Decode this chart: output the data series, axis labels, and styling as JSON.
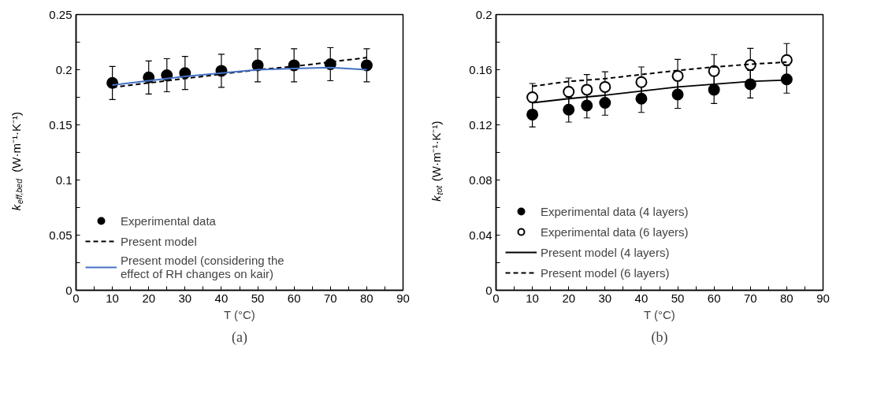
{
  "chart_data": [
    {
      "type": "line",
      "xlabel": "T (°C)",
      "ylabel": "k$_{eff,bed}$ (W·m⁻¹·K⁻¹)",
      "annotations": [
        "(a)"
      ],
      "xlim": [
        0,
        90
      ],
      "ylim": [
        0,
        0.25
      ],
      "xticks": [
        0,
        {
          "value": 5,
          "label": null
        },
        10,
        {
          "value": 15,
          "label": null
        },
        20,
        {
          "value": 25,
          "label": null
        },
        30,
        {
          "value": 35,
          "label": null
        },
        40,
        {
          "value": 45,
          "label": null
        },
        50,
        {
          "value": 55,
          "label": null
        },
        60,
        {
          "value": 65,
          "label": null
        },
        70,
        {
          "value": 75,
          "label": null
        },
        80,
        {
          "value": 85,
          "label": null
        },
        90
      ],
      "yticks": [
        0,
        {
          "value": 0.025,
          "label": null
        },
        0.05,
        {
          "value": 0.075,
          "label": null
        },
        0.1,
        {
          "value": 0.125,
          "label": null
        },
        0.15,
        {
          "value": 0.175,
          "label": null
        },
        0.2,
        {
          "value": 0.225,
          "label": null
        },
        0.25
      ],
      "legend": "bottom left",
      "series": [
        {
          "name": "Experimental data",
          "type": "scatter",
          "marker": "circle",
          "color": "#000000",
          "x": [
            10,
            20,
            25,
            30,
            40,
            50,
            60,
            70,
            80
          ],
          "values": [
            0.188,
            0.193,
            0.195,
            0.197,
            0.199,
            0.204,
            0.204,
            0.205,
            0.204
          ],
          "errors": [
            0.015,
            0.015,
            0.015,
            0.015,
            0.015,
            0.015,
            0.015,
            0.015,
            0.015
          ]
        },
        {
          "name": "Present model",
          "marker": "none",
          "line_style": "dashed",
          "color": "#000000",
          "x": [
            10,
            20,
            30,
            40,
            50,
            60,
            70,
            80
          ],
          "values": [
            0.184,
            0.188,
            0.192,
            0.196,
            0.2,
            0.203,
            0.207,
            0.211
          ]
        },
        {
          "name": "Present model (considering the effect of RH changes on kair)",
          "marker": "none",
          "line_style": "solid",
          "color": "#4472c4",
          "x": [
            10,
            20,
            30,
            40,
            50,
            60,
            70,
            80
          ],
          "values": [
            0.186,
            0.19,
            0.194,
            0.197,
            0.2,
            0.201,
            0.202,
            0.2
          ]
        }
      ]
    },
    {
      "type": "line",
      "xlabel": "T (°C)",
      "ylabel": "k$_{tot}$ (W·m⁻¹·K⁻¹)",
      "annotations": [
        "(b)"
      ],
      "xlim": [
        0,
        90
      ],
      "ylim": [
        0,
        0.2
      ],
      "xticks": [
        0,
        {
          "value": 5,
          "label": null
        },
        10,
        {
          "value": 15,
          "label": null
        },
        20,
        {
          "value": 25,
          "label": null
        },
        30,
        {
          "value": 35,
          "label": null
        },
        40,
        {
          "value": 45,
          "label": null
        },
        50,
        {
          "value": 55,
          "label": null
        },
        60,
        {
          "value": 65,
          "label": null
        },
        70,
        {
          "value": 75,
          "label": null
        },
        80,
        {
          "value": 85,
          "label": null
        },
        90
      ],
      "yticks": [
        0,
        {
          "value": 0.02,
          "label": null
        },
        0.04,
        {
          "value": 0.06,
          "label": null
        },
        0.08,
        {
          "value": 0.1,
          "label": null
        },
        0.12,
        {
          "value": 0.14,
          "label": null
        },
        0.16,
        {
          "value": 0.18,
          "label": null
        },
        0.2
      ],
      "legend": "bottom left",
      "series": [
        {
          "name": "Experimental data (4 layers)",
          "type": "scatter",
          "marker": "circle",
          "color": "#000000",
          "x": [
            10,
            20,
            25,
            30,
            40,
            50,
            60,
            70,
            80
          ],
          "values": [
            0.1275,
            0.131,
            0.134,
            0.136,
            0.139,
            0.142,
            0.1455,
            0.1495,
            0.153
          ],
          "errors": [
            0.009,
            0.009,
            0.009,
            0.009,
            0.01,
            0.01,
            0.01,
            0.01,
            0.01
          ]
        },
        {
          "name": "Experimental data (6 layers)",
          "type": "scatter",
          "marker": "circle_open",
          "color": "#000000",
          "x": [
            10,
            20,
            25,
            30,
            40,
            50,
            60,
            70,
            80
          ],
          "values": [
            0.14,
            0.144,
            0.1455,
            0.1475,
            0.151,
            0.1555,
            0.159,
            0.1635,
            0.167
          ],
          "errors": [
            0.01,
            0.01,
            0.011,
            0.011,
            0.011,
            0.012,
            0.012,
            0.012,
            0.012
          ]
        },
        {
          "name": "Present model (4 layers)",
          "marker": "none",
          "line_style": "solid",
          "color": "#000000",
          "x": [
            10,
            20,
            30,
            40,
            50,
            60,
            70,
            80
          ],
          "values": [
            0.136,
            0.139,
            0.1415,
            0.1445,
            0.1475,
            0.1495,
            0.1515,
            0.1525
          ]
        },
        {
          "name": "Present model (6 layers)",
          "marker": "none",
          "line_style": "dashed",
          "color": "#000000",
          "x": [
            10,
            20,
            30,
            40,
            50,
            60,
            70,
            80
          ],
          "values": [
            0.148,
            0.1515,
            0.1535,
            0.1565,
            0.1595,
            0.162,
            0.164,
            0.1655
          ]
        }
      ]
    }
  ]
}
